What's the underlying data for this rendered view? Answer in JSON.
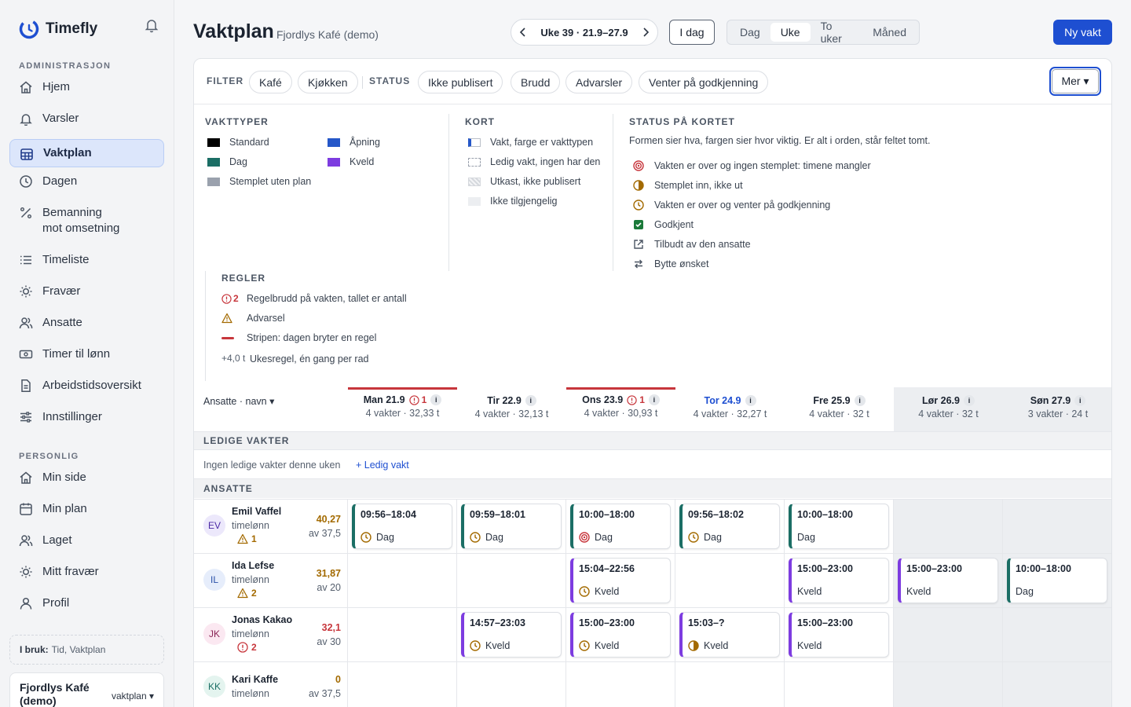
{
  "app": {
    "name": "Timefly"
  },
  "sidebar": {
    "admin_label": "ADMINISTRASJON",
    "admin_items": [
      {
        "label": "Hjem",
        "icon": "home-icon"
      },
      {
        "label": "Varsler",
        "icon": "bell-icon"
      },
      {
        "label": "Vaktplan",
        "icon": "calendar-grid-icon",
        "active": true
      },
      {
        "label": "Dagen",
        "icon": "clock-icon"
      },
      {
        "label": "Bemanning\nmot omsetning",
        "icon": "percent-icon"
      },
      {
        "label": "Timeliste",
        "icon": "list-icon"
      },
      {
        "label": "Fravær",
        "icon": "sun-icon"
      },
      {
        "label": "Ansatte",
        "icon": "users-icon"
      },
      {
        "label": "Timer til lønn",
        "icon": "cash-icon"
      },
      {
        "label": "Arbeidstidsoversikt",
        "icon": "document-icon"
      },
      {
        "label": "Innstillinger",
        "icon": "sliders-icon"
      }
    ],
    "personal_label": "PERSONLIG",
    "personal_items": [
      {
        "label": "Min side",
        "icon": "home-icon"
      },
      {
        "label": "Min plan",
        "icon": "calendar-icon"
      },
      {
        "label": "Laget",
        "icon": "users-icon"
      },
      {
        "label": "Mitt fravær",
        "icon": "sun-icon"
      },
      {
        "label": "Profil",
        "icon": "user-icon"
      }
    ],
    "in_use_label": "I bruk:",
    "in_use_value": "Tid, Vaktplan",
    "org_name": "Fjordlys Kafé (demo)",
    "org_role": "vaktplan ▾"
  },
  "header": {
    "title": "Vaktplan",
    "subtitle": "Fjordlys Kafé (demo)",
    "week_label": "Uke 39 · 21.9–27.9",
    "today": "I dag",
    "views": [
      "Dag",
      "Uke",
      "To uker",
      "Måned"
    ],
    "active_view": "Uke",
    "new_shift": "Ny vakt"
  },
  "filters": {
    "filter_label": "FILTER",
    "filter_chips": [
      "Kafé",
      "Kjøkken"
    ],
    "status_label": "STATUS",
    "status_chips": [
      "Ikke publisert",
      "Brudd",
      "Advarsler",
      "Venter på godkjenning"
    ],
    "more": "Mer ▾"
  },
  "legend": {
    "shift_types": {
      "heading": "VAKTTYPER",
      "items": [
        {
          "label": "Standard",
          "color": "#000000"
        },
        {
          "label": "Åpning",
          "color": "#2557c8"
        },
        {
          "label": "Dag",
          "color": "#1b6e65"
        },
        {
          "label": "Kveld",
          "color": "#7d3ce0"
        },
        {
          "label": "Stemplet uten plan",
          "color": "#9aa1ad"
        }
      ]
    },
    "card": {
      "heading": "KORT",
      "items": [
        "Vakt, farge er vakttypen",
        "Ledig vakt, ingen har den",
        "Utkast, ikke publisert",
        "Ikke tilgjengelig"
      ]
    },
    "status": {
      "heading": "STATUS PÅ KORTET",
      "intro": "Formen sier hva, fargen sier hvor viktig. Er alt i orden, står feltet tomt.",
      "items": [
        {
          "label": "Vakten er over og ingen stemplet: timene mangler",
          "icon": "target-icon"
        },
        {
          "label": "Stemplet inn, ikke ut",
          "icon": "half-circle-icon"
        },
        {
          "label": "Vakten er over og venter på godkjenning",
          "icon": "clock-icon"
        },
        {
          "label": "Godkjent",
          "icon": "check-box-icon"
        },
        {
          "label": "Tilbudt av den ansatte",
          "icon": "external-link-icon"
        },
        {
          "label": "Bytte ønsket",
          "icon": "swap-icon"
        }
      ]
    },
    "rules": {
      "heading": "REGLER",
      "items": [
        {
          "label": "Regelbrudd på vakten, tallet er antall",
          "badge": "2"
        },
        {
          "label": "Advarsel"
        },
        {
          "label": "Stripen: dagen bryter en regel"
        },
        {
          "label": "Ukesregel, én gang per rad",
          "badge": "+4,0 t"
        }
      ]
    }
  },
  "grid": {
    "sort_label": "Ansatte · navn ▾",
    "days": [
      {
        "date": "Man 21.9",
        "summary": "4 vakter · 32,33 t",
        "violations": "1",
        "red": true
      },
      {
        "date": "Tir 22.9",
        "summary": "4 vakter · 32,13 t"
      },
      {
        "date": "Ons 23.9",
        "summary": "4 vakter · 30,93 t",
        "violations": "1",
        "red": true
      },
      {
        "date": "Tor 24.9",
        "summary": "4 vakter · 32,27 t",
        "today": true
      },
      {
        "date": "Fre 25.9",
        "summary": "4 vakter · 32 t"
      },
      {
        "date": "Lør 26.9",
        "summary": "4 vakter · 32 t",
        "weekend": true
      },
      {
        "date": "Søn 27.9",
        "summary": "3 vakter · 24 t",
        "weekend": true
      }
    ],
    "open_label": "LEDIGE VAKTER",
    "open_empty": "Ingen ledige vakter denne uken",
    "open_add": "+ Ledig vakt",
    "employees_label": "ANSATTE",
    "employees": [
      {
        "initials": "EV",
        "name": "Emil Vaffel",
        "pay": "timelønn",
        "hours": "40,27",
        "of": "av 37,5",
        "warn": "1",
        "warn_type": "warning",
        "hours_color": "#a36a00",
        "shifts": [
          {
            "day": 0,
            "time": "09:56–18:04",
            "type": "Dag",
            "status": "clock-icon"
          },
          {
            "day": 1,
            "time": "09:59–18:01",
            "type": "Dag",
            "status": "clock-icon"
          },
          {
            "day": 2,
            "time": "10:00–18:00",
            "type": "Dag",
            "status": "target-icon"
          },
          {
            "day": 3,
            "time": "09:56–18:02",
            "type": "Dag",
            "status": "clock-icon"
          },
          {
            "day": 4,
            "time": "10:00–18:00",
            "type": "Dag"
          }
        ]
      },
      {
        "initials": "IL",
        "name": "Ida Lefse",
        "pay": "timelønn",
        "hours": "31,87",
        "of": "av 20",
        "warn": "2",
        "warn_type": "warning",
        "hours_color": "#a36a00",
        "shifts": [
          {
            "day": 2,
            "time": "15:04–22:56",
            "type": "Kveld",
            "status": "clock-icon"
          },
          {
            "day": 4,
            "time": "15:00–23:00",
            "type": "Kveld"
          },
          {
            "day": 5,
            "time": "15:00–23:00",
            "type": "Kveld"
          },
          {
            "day": 6,
            "time": "10:00–18:00",
            "type": "Dag"
          }
        ]
      },
      {
        "initials": "JK",
        "name": "Jonas Kakao",
        "pay": "timelønn",
        "hours": "32,1",
        "of": "av 30",
        "warn": "2",
        "warn_type": "error",
        "hours_color": "#c7363c",
        "shifts": [
          {
            "day": 1,
            "time": "14:57–23:03",
            "type": "Kveld",
            "status": "clock-icon"
          },
          {
            "day": 2,
            "time": "15:00–23:00",
            "type": "Kveld",
            "status": "clock-icon"
          },
          {
            "day": 3,
            "time": "15:03–?",
            "type": "Kveld",
            "status": "half-circle-icon"
          },
          {
            "day": 4,
            "time": "15:00–23:00",
            "type": "Kveld"
          }
        ]
      },
      {
        "initials": "KK",
        "name": "Kari Kaffe",
        "pay": "timelønn",
        "hours": "0",
        "of": "av 37,5",
        "hours_color": "#a36a00",
        "shifts": []
      }
    ]
  },
  "colors": {
    "accent": "#1e4fd1",
    "dag": "#1b6e65",
    "kveld": "#7d3ce0",
    "error": "#c7363c",
    "warning": "#a36a00"
  }
}
